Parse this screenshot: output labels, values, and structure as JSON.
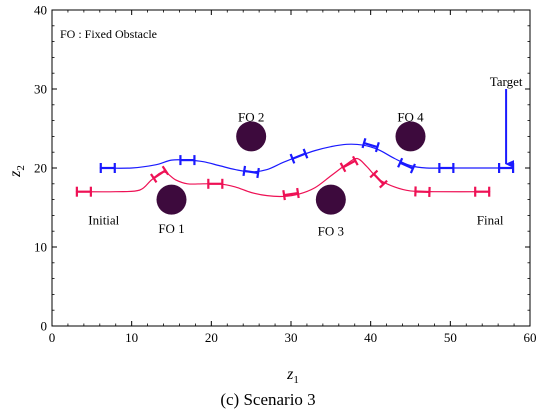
{
  "chart_data": {
    "type": "line",
    "xlabel": "z",
    "xlabel_sub": "1",
    "ylabel": "z",
    "ylabel_sub": "2",
    "xlim": [
      0,
      60
    ],
    "ylim": [
      0,
      40
    ],
    "xticks": [
      0,
      10,
      20,
      30,
      40,
      50,
      60
    ],
    "yticks": [
      0,
      10,
      20,
      30,
      40
    ],
    "grid": false,
    "note": "FO : Fixed Obstacle",
    "caption": "(c) Scenario 3",
    "series": [
      {
        "color": "#1a1aff",
        "points": [
          [
            6,
            20
          ],
          [
            10,
            20
          ],
          [
            13,
            20.4
          ],
          [
            15,
            21
          ],
          [
            17,
            21
          ],
          [
            19,
            20.8
          ],
          [
            21,
            20.3
          ],
          [
            23,
            19.8
          ],
          [
            25,
            19.5
          ],
          [
            27,
            19.8
          ],
          [
            29,
            20.7
          ],
          [
            31,
            21.5
          ],
          [
            33,
            22.2
          ],
          [
            35,
            22.7
          ],
          [
            37,
            23
          ],
          [
            39,
            22.9
          ],
          [
            41,
            22.3
          ],
          [
            43,
            21.2
          ],
          [
            45,
            20.3
          ],
          [
            47,
            20
          ],
          [
            50,
            20
          ],
          [
            57,
            20
          ]
        ],
        "markers": [
          [
            7,
            20
          ],
          [
            17,
            21
          ],
          [
            25,
            19.5
          ],
          [
            31,
            21.5
          ],
          [
            40,
            22.9
          ],
          [
            44.5,
            20.3
          ],
          [
            49.5,
            20
          ],
          [
            57,
            20
          ]
        ]
      },
      {
        "color": "#ee1155",
        "points": [
          [
            3,
            17
          ],
          [
            8,
            17
          ],
          [
            11,
            17.2
          ],
          [
            12.5,
            18.5
          ],
          [
            14,
            19.5
          ],
          [
            15.5,
            18.5
          ],
          [
            17,
            18
          ],
          [
            19,
            18
          ],
          [
            21,
            18
          ],
          [
            23,
            17.6
          ],
          [
            25,
            16.9
          ],
          [
            27,
            16.5
          ],
          [
            29,
            16.4
          ],
          [
            31,
            16.7
          ],
          [
            33,
            17.5
          ],
          [
            35,
            19
          ],
          [
            37,
            20.5
          ],
          [
            38.3,
            21.2
          ],
          [
            39.5,
            20.2
          ],
          [
            41,
            18.6
          ],
          [
            43,
            17.6
          ],
          [
            45,
            17.1
          ],
          [
            48,
            17
          ],
          [
            55,
            17
          ]
        ],
        "markers": [
          [
            4,
            17
          ],
          [
            13.5,
            19.2
          ],
          [
            20.5,
            18
          ],
          [
            30,
            16.7
          ],
          [
            37.3,
            20.5
          ],
          [
            41,
            18.6
          ],
          [
            46.5,
            17
          ],
          [
            54,
            17
          ]
        ]
      }
    ],
    "target_arrow": {
      "x": 57,
      "y_from": 30,
      "y_to": 20.5
    },
    "obstacles": [
      {
        "label": "FO 1",
        "x": 15,
        "y": 16,
        "label_x": 15,
        "label_y": 12.4
      },
      {
        "label": "FO 2",
        "x": 25,
        "y": 24,
        "label_x": 25,
        "label_y": 26.5
      },
      {
        "label": "FO 3",
        "x": 35,
        "y": 16,
        "label_x": 35,
        "label_y": 12.1
      },
      {
        "label": "FO 4",
        "x": 45,
        "y": 24,
        "label_x": 45,
        "label_y": 26.5
      }
    ],
    "annotations": [
      {
        "text": "Initial",
        "x": 6.5,
        "y": 13.5
      },
      {
        "text": "Final",
        "x": 55,
        "y": 13.5
      },
      {
        "text": "Target",
        "x": 57,
        "y": 31
      }
    ]
  }
}
